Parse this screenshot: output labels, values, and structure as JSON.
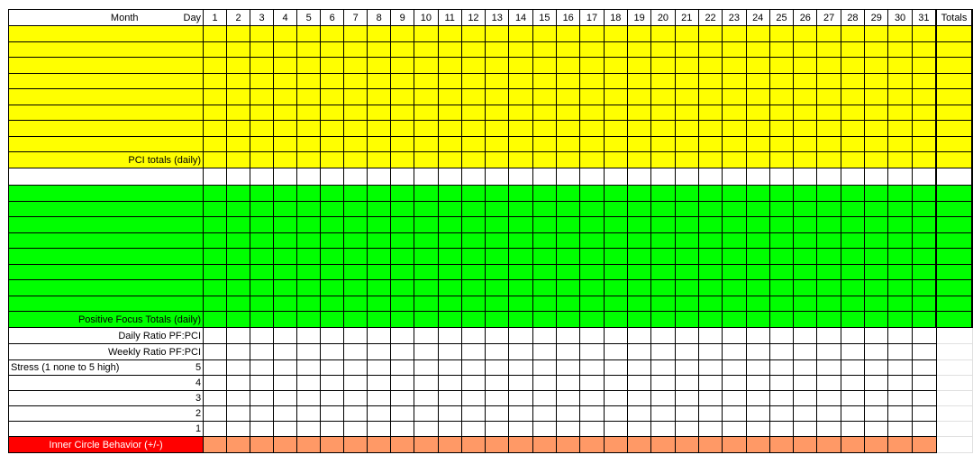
{
  "header": {
    "month_label": "Month",
    "day_label": "Day",
    "days": [
      "1",
      "2",
      "3",
      "4",
      "5",
      "6",
      "7",
      "8",
      "9",
      "10",
      "11",
      "12",
      "13",
      "14",
      "15",
      "16",
      "17",
      "18",
      "19",
      "20",
      "21",
      "22",
      "23",
      "24",
      "25",
      "26",
      "27",
      "28",
      "29",
      "30",
      "31"
    ],
    "totals_label": "Totals"
  },
  "rows": {
    "pci_totals": "PCI totals (daily)",
    "positive_focus_totals": "Positive Focus Totals (daily)",
    "daily_ratio": "Daily Ratio PF:PCI",
    "weekly_ratio": "Weekly Ratio PF:PCI",
    "stress_label": "Stress  (1 none to 5 high)",
    "stress_levels": [
      "5",
      "4",
      "3",
      "2",
      "1"
    ],
    "inner_circle": "Inner Circle Behavior (+/-)"
  },
  "colors": {
    "pci": "#ffff00",
    "positive_focus": "#00ff00",
    "inner_circle_label": "#ff0000",
    "inner_circle_cells": "#ff9966"
  }
}
